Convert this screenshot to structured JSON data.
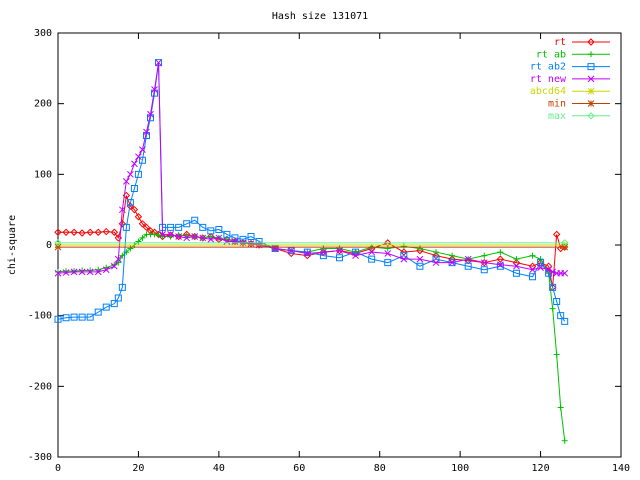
{
  "chart_data": {
    "type": "line",
    "title": "Hash size 131071",
    "ylabel": "chi-square",
    "xlim": [
      0,
      140
    ],
    "xticks": [
      0,
      20,
      40,
      60,
      80,
      100,
      120,
      140
    ],
    "ylim": [
      -300,
      300
    ],
    "yticks": [
      -300,
      -200,
      -100,
      0,
      100,
      200,
      300
    ],
    "legend": "top-right",
    "series": [
      {
        "name": "rt",
        "color": "#ff0000",
        "marker": "diamond",
        "x": [
          0,
          2,
          4,
          6,
          8,
          10,
          12,
          14,
          15,
          16,
          17,
          18,
          19,
          20,
          21,
          22,
          23,
          24,
          25,
          26,
          28,
          30,
          32,
          34,
          36,
          38,
          40,
          42,
          44,
          46,
          48,
          50,
          54,
          58,
          62,
          66,
          70,
          74,
          78,
          82,
          86,
          90,
          94,
          98,
          102,
          106,
          110,
          114,
          118,
          120,
          122,
          123,
          124,
          125,
          126
        ],
        "values": [
          18,
          18,
          18,
          17,
          18,
          18,
          19,
          18,
          10,
          30,
          70,
          55,
          50,
          40,
          30,
          25,
          20,
          18,
          15,
          12,
          14,
          12,
          15,
          12,
          10,
          12,
          8,
          8,
          5,
          3,
          2,
          0,
          -5,
          -12,
          -15,
          -10,
          -8,
          -12,
          -5,
          3,
          -10,
          -8,
          -15,
          -20,
          -22,
          -25,
          -20,
          -25,
          -30,
          -25,
          -30,
          -60,
          15,
          -5,
          -3
        ]
      },
      {
        "name": "rt ab",
        "color": "#00c000",
        "marker": "plus",
        "x": [
          0,
          2,
          4,
          6,
          8,
          10,
          12,
          14,
          15,
          16,
          17,
          18,
          19,
          20,
          21,
          22,
          23,
          24,
          25,
          26,
          28,
          30,
          32,
          34,
          36,
          38,
          40,
          42,
          44,
          46,
          48,
          50,
          54,
          58,
          62,
          66,
          70,
          74,
          78,
          82,
          86,
          90,
          94,
          98,
          102,
          106,
          110,
          114,
          118,
          120,
          122,
          123,
          124,
          125,
          126
        ],
        "values": [
          -38,
          -37,
          -37,
          -36,
          -36,
          -35,
          -32,
          -28,
          -25,
          -15,
          -10,
          -5,
          0,
          5,
          10,
          15,
          15,
          15,
          14,
          12,
          12,
          14,
          13,
          12,
          10,
          12,
          10,
          8,
          6,
          4,
          3,
          2,
          -5,
          -8,
          -10,
          -5,
          -5,
          -10,
          -3,
          -5,
          -2,
          -5,
          -10,
          -15,
          -20,
          -15,
          -10,
          -20,
          -15,
          -20,
          -40,
          -90,
          -155,
          -230,
          -277
        ]
      },
      {
        "name": "rt ab2",
        "color": "#0080ff",
        "marker": "square",
        "x": [
          0,
          2,
          4,
          6,
          8,
          10,
          12,
          14,
          15,
          16,
          17,
          18,
          19,
          20,
          21,
          22,
          23,
          24,
          25,
          26,
          28,
          30,
          32,
          34,
          36,
          38,
          40,
          42,
          44,
          46,
          48,
          50,
          54,
          58,
          62,
          66,
          70,
          74,
          78,
          82,
          86,
          90,
          94,
          98,
          102,
          106,
          110,
          114,
          118,
          120,
          122,
          123,
          124,
          125,
          126
        ],
        "values": [
          -105,
          -103,
          -102,
          -102,
          -102,
          -95,
          -88,
          -83,
          -75,
          -60,
          25,
          60,
          80,
          100,
          120,
          155,
          180,
          215,
          258,
          25,
          25,
          25,
          30,
          35,
          25,
          20,
          22,
          15,
          10,
          8,
          12,
          5,
          -5,
          -8,
          -10,
          -15,
          -18,
          -10,
          -20,
          -25,
          -15,
          -30,
          -20,
          -25,
          -30,
          -35,
          -30,
          -40,
          -45,
          -25,
          -40,
          -60,
          -80,
          -100,
          -108
        ]
      },
      {
        "name": "rt new",
        "color": "#c000ff",
        "marker": "cross",
        "x": [
          0,
          2,
          4,
          6,
          8,
          10,
          12,
          14,
          15,
          16,
          17,
          18,
          19,
          20,
          21,
          22,
          23,
          24,
          25,
          26,
          28,
          30,
          32,
          34,
          36,
          38,
          40,
          42,
          44,
          46,
          48,
          50,
          54,
          58,
          62,
          66,
          70,
          74,
          78,
          82,
          86,
          90,
          94,
          98,
          102,
          106,
          110,
          114,
          118,
          120,
          122,
          123,
          124,
          125,
          126
        ],
        "values": [
          -40,
          -39,
          -38,
          -38,
          -38,
          -38,
          -35,
          -30,
          -20,
          50,
          90,
          100,
          115,
          125,
          135,
          160,
          185,
          220,
          258,
          15,
          15,
          12,
          10,
          12,
          10,
          8,
          10,
          5,
          5,
          3,
          2,
          0,
          -5,
          -8,
          -12,
          -10,
          -8,
          -15,
          -10,
          -12,
          -20,
          -20,
          -25,
          -25,
          -20,
          -25,
          -28,
          -30,
          -35,
          -32,
          -35,
          -38,
          -40,
          -40,
          -40
        ]
      },
      {
        "name": "abcd64",
        "color": "#c8d800",
        "marker": "star",
        "x": [
          0,
          126
        ],
        "values": [
          0,
          0
        ]
      },
      {
        "name": "min",
        "color": "#c04000",
        "marker": "star",
        "x": [
          0,
          126
        ],
        "values": [
          -3,
          -3
        ]
      },
      {
        "name": "max",
        "color": "#66ee88",
        "marker": "diamond",
        "x": [
          0,
          126
        ],
        "values": [
          3,
          3
        ]
      }
    ]
  }
}
